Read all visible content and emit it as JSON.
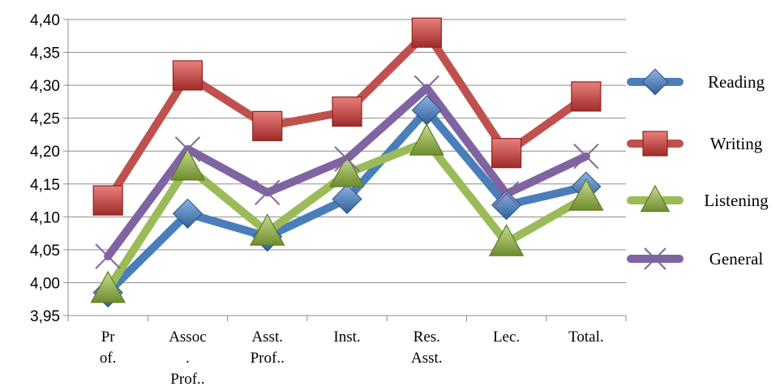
{
  "chart_data": {
    "type": "line",
    "categories": [
      [
        "Pr",
        "of."
      ],
      [
        "Assoc",
        ".",
        "Prof.."
      ],
      [
        "Asst.",
        "Prof.."
      ],
      [
        "Inst."
      ],
      [
        "Res.",
        "Asst."
      ],
      [
        "Lec."
      ],
      [
        "Total."
      ]
    ],
    "y_ticks": [
      "4,40",
      "4,35",
      "4,30",
      "4,25",
      "4,20",
      "4,15",
      "4,10",
      "4,05",
      "4,00",
      "3,95"
    ],
    "ylim": [
      3.95,
      4.4
    ],
    "grid": true,
    "legend_position": "right",
    "series": [
      {
        "name": "Reading",
        "color": "#4a7ebb",
        "marker": "diamond",
        "values": [
          3.985,
          4.105,
          4.07,
          4.127,
          4.262,
          4.118,
          4.146
        ]
      },
      {
        "name": "Writing",
        "color": "#c0504d",
        "marker": "square",
        "values": [
          4.125,
          4.315,
          4.238,
          4.26,
          4.38,
          4.197,
          4.283
        ]
      },
      {
        "name": "Listening",
        "color": "#9bbb59",
        "marker": "triangle",
        "values": [
          3.99,
          4.176,
          4.077,
          4.166,
          4.214,
          4.061,
          4.13
        ]
      },
      {
        "name": "General",
        "color": "#8064a2",
        "marker": "x",
        "values": [
          4.04,
          4.203,
          4.137,
          4.188,
          4.296,
          4.135,
          4.192
        ]
      }
    ]
  }
}
